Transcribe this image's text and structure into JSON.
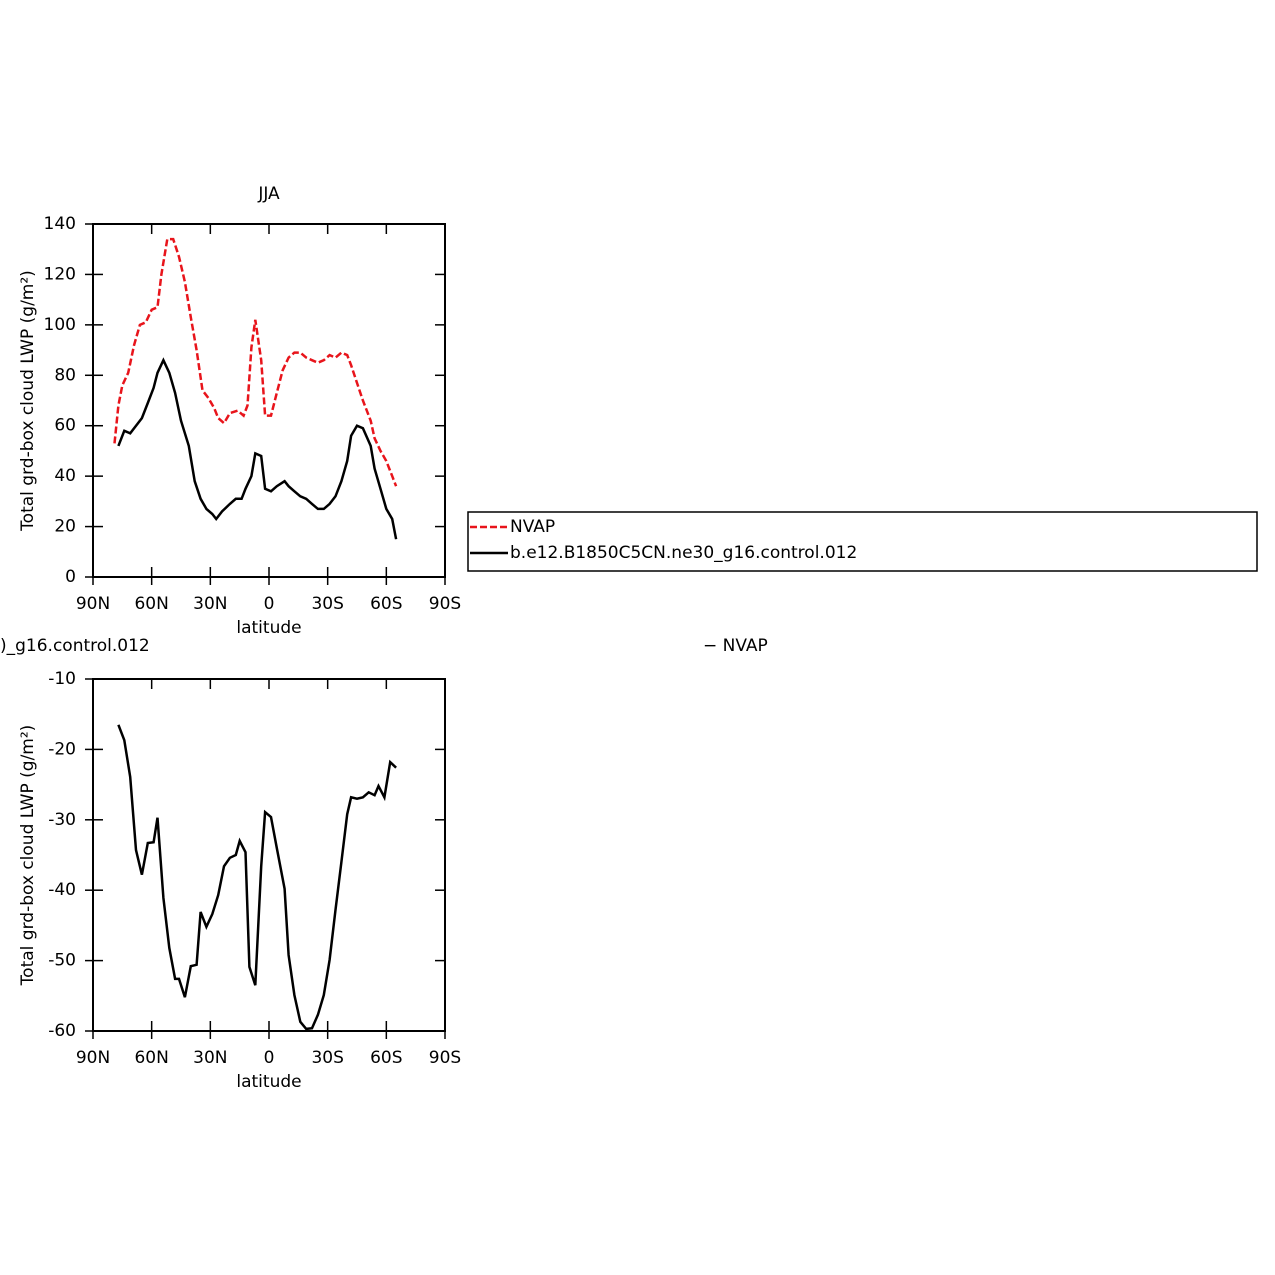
{
  "chart_data": [
    {
      "type": "line",
      "title": "JJA",
      "ylabel": "Total grd-box cloud LWP (g/m²)",
      "xlabel": "latitude",
      "xlim": [
        90,
        -90
      ],
      "xticks": [
        {
          "value": 90,
          "label": "90N"
        },
        {
          "value": 60,
          "label": "60N"
        },
        {
          "value": 30,
          "label": "30N"
        },
        0,
        {
          "value": -30,
          "label": "30S"
        },
        {
          "value": -60,
          "label": "60S"
        },
        {
          "value": -90,
          "label": "90S"
        }
      ],
      "ylim": [
        0,
        140
      ],
      "yticks": [
        0,
        20,
        40,
        60,
        80,
        100,
        120,
        140
      ],
      "legend": "right",
      "series": [
        {
          "name": "NVAP",
          "color": "#e8141b",
          "dash": true,
          "x": [
            79,
            77,
            75,
            72,
            69,
            66,
            63,
            60,
            57,
            55,
            52,
            49,
            46,
            43,
            40,
            37,
            34,
            31,
            28,
            26,
            23,
            20,
            16,
            13,
            11,
            9,
            7,
            4,
            2,
            -1,
            -4,
            -7,
            -10,
            -13,
            -16,
            -19,
            -22,
            -25,
            -28,
            -31,
            -34,
            -37,
            -40,
            -42,
            -45,
            -48,
            -52,
            -54,
            -57,
            -60,
            -63,
            -65
          ],
          "values": [
            53,
            68,
            76,
            81,
            92,
            100,
            101,
            106,
            107,
            120,
            134,
            134,
            127,
            117,
            103,
            90,
            74,
            71,
            67,
            63,
            61,
            65,
            66,
            64,
            68,
            91,
            102,
            86,
            64,
            64,
            73,
            82,
            87,
            89,
            89,
            87,
            86,
            85,
            86,
            88,
            87,
            89,
            88,
            84,
            77,
            70,
            62,
            55,
            50,
            46,
            40,
            36
          ]
        },
        {
          "name": "b.e12.B1850C5CN.ne30_g16.control.012",
          "color": "#000000",
          "dash": false,
          "x": [
            77,
            74,
            71,
            69,
            65,
            62,
            59,
            57,
            54,
            51,
            48,
            45,
            41,
            38,
            35,
            32,
            29,
            27,
            24,
            20,
            17,
            14,
            12,
            9,
            7,
            4,
            2,
            -1,
            -4,
            -8,
            -10,
            -13,
            -16,
            -19,
            -22,
            -25,
            -28,
            -31,
            -34,
            -37,
            -40,
            -42,
            -45,
            -48,
            -52,
            -54,
            -57,
            -60,
            -63,
            -65
          ],
          "values": [
            52,
            58,
            57,
            59,
            63,
            69,
            75,
            81,
            86,
            81,
            73,
            62,
            52,
            38,
            31,
            27,
            25,
            23,
            26,
            29,
            31,
            31,
            35,
            40,
            49,
            48,
            35,
            34,
            36,
            38,
            36,
            34,
            32,
            31,
            29,
            27,
            27,
            29,
            32,
            38,
            46,
            56,
            60,
            59,
            52,
            43,
            35,
            27,
            23,
            15
          ]
        }
      ]
    },
    {
      "type": "line",
      "title_left": ")_g16.control.012",
      "title_right": "− NVAP",
      "ylabel": "Total grd-box cloud LWP (g/m²)",
      "xlabel": "latitude",
      "xlim": [
        90,
        -90
      ],
      "xticks": [
        {
          "value": 90,
          "label": "90N"
        },
        {
          "value": 60,
          "label": "60N"
        },
        {
          "value": 30,
          "label": "30N"
        },
        0,
        {
          "value": -30,
          "label": "30S"
        },
        {
          "value": -60,
          "label": "60S"
        },
        {
          "value": -90,
          "label": "90S"
        }
      ],
      "ylim": [
        -60,
        -10
      ],
      "yticks": [
        -60,
        -50,
        -40,
        -30,
        -20,
        -10
      ],
      "series": [
        {
          "color": "#000000",
          "dash": false,
          "x": [
            77,
            74,
            71,
            68,
            65,
            62,
            59,
            57,
            54,
            51,
            48,
            46,
            43,
            40,
            37,
            35,
            32,
            29,
            26,
            23,
            20,
            17,
            15,
            12,
            10,
            7,
            4,
            2,
            -1,
            -4,
            -8,
            -10,
            -13,
            -16,
            -19,
            -22,
            -25,
            -28,
            -31,
            -34,
            -37,
            -40,
            -42,
            -45,
            -48,
            -51,
            -54,
            -56,
            -59,
            -62,
            -65
          ],
          "values": [
            -16.5,
            -18.7,
            -23.9,
            -34.3,
            -37.8,
            -33.3,
            -33.2,
            -29.7,
            -41.1,
            -48.2,
            -52.6,
            -52.6,
            -55.2,
            -50.8,
            -50.6,
            -43.1,
            -45.2,
            -43.4,
            -40.7,
            -36.6,
            -35.4,
            -35.0,
            -33.0,
            -34.6,
            -50.9,
            -53.5,
            -36.6,
            -28.9,
            -29.6,
            -34.0,
            -39.8,
            -49.2,
            -54.9,
            -58.7,
            -59.7,
            -59.6,
            -57.7,
            -54.9,
            -49.9,
            -42.8,
            -36.0,
            -29.2,
            -26.8,
            -27.0,
            -26.8,
            -26.1,
            -26.5,
            -25.2,
            -26.8,
            -21.8,
            -22.6
          ]
        }
      ]
    }
  ]
}
